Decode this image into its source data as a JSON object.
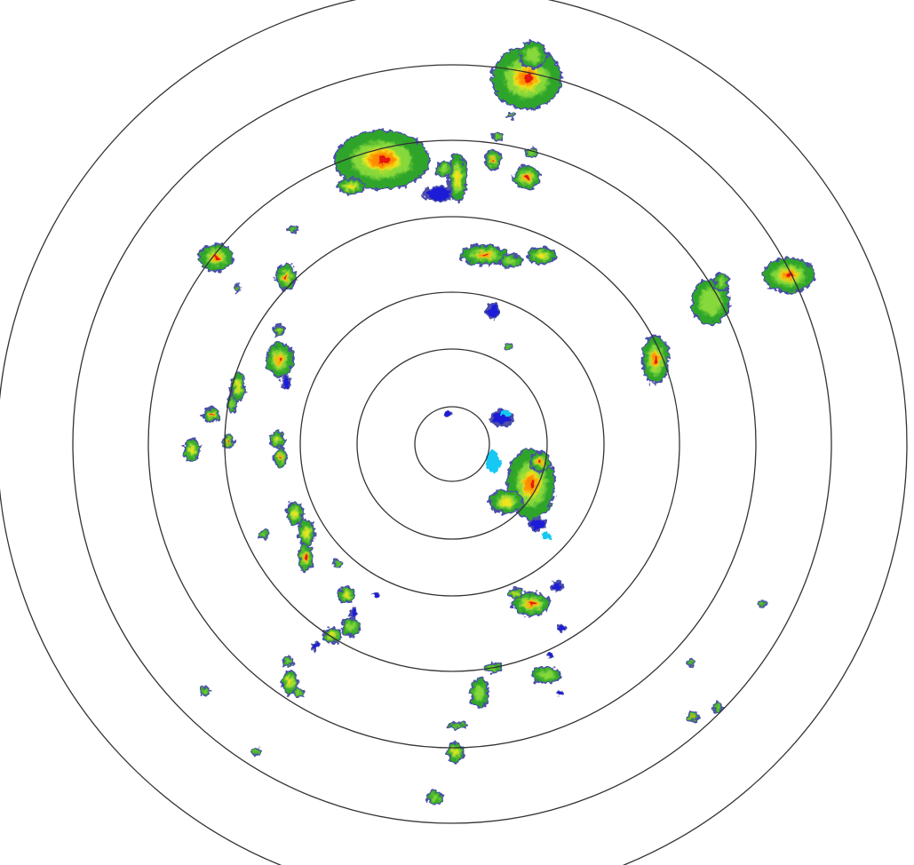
{
  "radar": {
    "range_ring_count": 7,
    "ring_color": "#333333",
    "background": "#ffffff",
    "reflectivity_colors": {
      "edge_purple": "#4b4fa8",
      "blue": "#1c1cd8",
      "cyan": "#12c8f4",
      "green": "#2ea52a",
      "light_green": "#86d83a",
      "yellow": "#f2e51c",
      "orange": "#ff8a00",
      "red": "#e4120e"
    }
  }
}
